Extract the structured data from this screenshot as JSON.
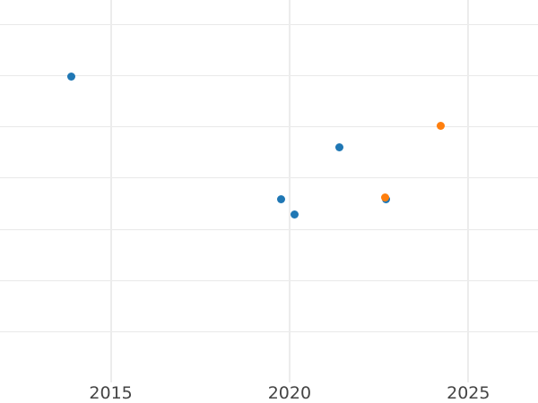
{
  "style": {
    "background": "#ffffff",
    "gridline_color": "#ebebeb",
    "tick_label_color": "#444444",
    "series_blue_color": "#1f77b4",
    "series_orange_color": "#ff7f0e"
  },
  "chart_data": {
    "type": "scatter",
    "title": "",
    "xlabel": "",
    "ylabel": "",
    "grid": true,
    "legend_visible": false,
    "marker_diameter_px": 9,
    "x_axis": {
      "range": [
        2011.9,
        2026.95
      ],
      "ticks": [
        {
          "label": "2015",
          "value": 2015
        },
        {
          "label": "2020",
          "value": 2020
        },
        {
          "label": "2025",
          "value": 2025
        }
      ]
    },
    "y_axis": {
      "range": [
        0,
        7.48
      ],
      "tick_labels_visible": false,
      "gridline_values": [
        1,
        2,
        3,
        4,
        5,
        6,
        7
      ]
    },
    "series": [
      {
        "name": "blue",
        "color": "#1f77b4",
        "marker": "circle",
        "points": [
          {
            "x": 2013.9,
            "y": 5.98
          },
          {
            "x": 2019.76,
            "y": 3.58
          },
          {
            "x": 2020.14,
            "y": 3.29
          },
          {
            "x": 2021.4,
            "y": 4.6
          },
          {
            "x": 2022.7,
            "y": 3.58
          }
        ]
      },
      {
        "name": "orange",
        "color": "#ff7f0e",
        "marker": "circle",
        "points": [
          {
            "x": 2022.68,
            "y": 3.62
          },
          {
            "x": 2024.22,
            "y": 5.03
          }
        ]
      }
    ]
  }
}
